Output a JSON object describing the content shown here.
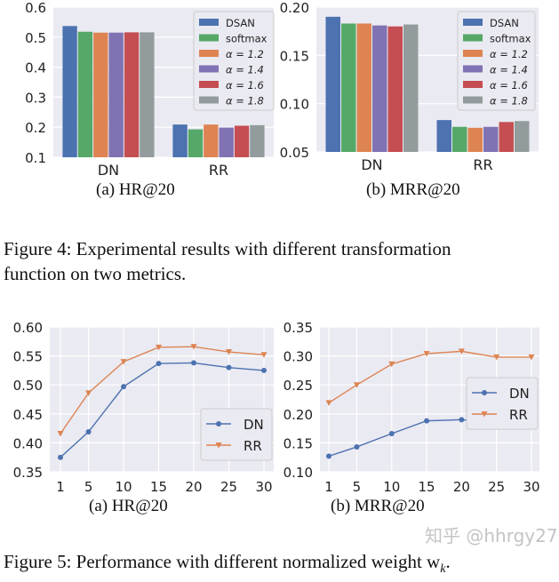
{
  "colors": {
    "plot_bg": "#eaeaf2",
    "series": [
      "#4c72b0",
      "#55a868",
      "#dd8452",
      "#8172b3",
      "#c44e52",
      "#939c9c"
    ],
    "line_dn": "#4c72b0",
    "line_rr": "#dd8452"
  },
  "figure4": {
    "caption_a": "(a)  HR@20",
    "caption_b": "(b)  MRR@20",
    "caption_line1": "Figure 4: Experimental results with different transformation",
    "caption_line2": "function on two metrics."
  },
  "figure5": {
    "caption_a": "(a)  HR@20",
    "caption_b": "(b)  MRR@20",
    "caption": "Figure 5: Performance with different normalized weight w",
    "caption_sub": "k",
    "caption_end": "."
  },
  "watermark": "知乎 @hhrgy27",
  "chart_data": [
    {
      "type": "bar",
      "categories": [
        "DN",
        "RR"
      ],
      "series": [
        {
          "name": "DSAN",
          "values": [
            0.537,
            0.209
          ]
        },
        {
          "name": "softmax",
          "values": [
            0.518,
            0.193
          ]
        },
        {
          "name": "α = 1.2",
          "values": [
            0.515,
            0.209
          ]
        },
        {
          "name": "α = 1.4",
          "values": [
            0.515,
            0.199
          ]
        },
        {
          "name": "α = 1.6",
          "values": [
            0.516,
            0.205
          ]
        },
        {
          "name": "α = 1.8",
          "values": [
            0.516,
            0.207
          ]
        }
      ],
      "ylim": [
        0.1,
        0.6
      ],
      "yticks": [
        "0.1",
        "0.2",
        "0.3",
        "0.4",
        "0.5",
        "0.6"
      ],
      "grid": true,
      "legend": "top-right"
    },
    {
      "type": "bar",
      "categories": [
        "DN",
        "RR"
      ],
      "series": [
        {
          "name": "DSAN",
          "values": [
            0.19,
            0.083
          ]
        },
        {
          "name": "softmax",
          "values": [
            0.183,
            0.076
          ]
        },
        {
          "name": "α = 1.2",
          "values": [
            0.183,
            0.075
          ]
        },
        {
          "name": "α = 1.4",
          "values": [
            0.181,
            0.076
          ]
        },
        {
          "name": "α = 1.6",
          "values": [
            0.18,
            0.081
          ]
        },
        {
          "name": "α = 1.8",
          "values": [
            0.182,
            0.082
          ]
        }
      ],
      "ylim": [
        0.05,
        0.2
      ],
      "yticks": [
        "0.05",
        "0.10",
        "0.15",
        "0.20"
      ],
      "grid": true,
      "legend": "top-right"
    },
    {
      "type": "line",
      "x": [
        1,
        5,
        10,
        15,
        20,
        25,
        30
      ],
      "series": [
        {
          "name": "DN",
          "marker": "circle",
          "values": [
            0.375,
            0.419,
            0.497,
            0.537,
            0.538,
            0.53,
            0.525
          ]
        },
        {
          "name": "RR",
          "marker": "triangle-down",
          "values": [
            0.416,
            0.486,
            0.54,
            0.565,
            0.566,
            0.557,
            0.552
          ]
        }
      ],
      "xlim": [
        1,
        30
      ],
      "ylim": [
        0.35,
        0.6
      ],
      "yticks": [
        "0.35",
        "0.40",
        "0.45",
        "0.50",
        "0.55",
        "0.60"
      ],
      "grid": true,
      "legend": "bottom-right"
    },
    {
      "type": "line",
      "x": [
        1,
        5,
        10,
        15,
        20,
        25,
        30
      ],
      "series": [
        {
          "name": "DN",
          "marker": "circle",
          "values": [
            0.127,
            0.143,
            0.166,
            0.188,
            0.19,
            0.185,
            0.181
          ]
        },
        {
          "name": "RR",
          "marker": "triangle-down",
          "values": [
            0.219,
            0.25,
            0.286,
            0.304,
            0.308,
            0.298,
            0.298
          ]
        }
      ],
      "xlim": [
        1,
        30
      ],
      "ylim": [
        0.1,
        0.35
      ],
      "yticks": [
        "0.10",
        "0.15",
        "0.20",
        "0.25",
        "0.30",
        "0.35"
      ],
      "grid": true,
      "legend": "center-right"
    }
  ]
}
